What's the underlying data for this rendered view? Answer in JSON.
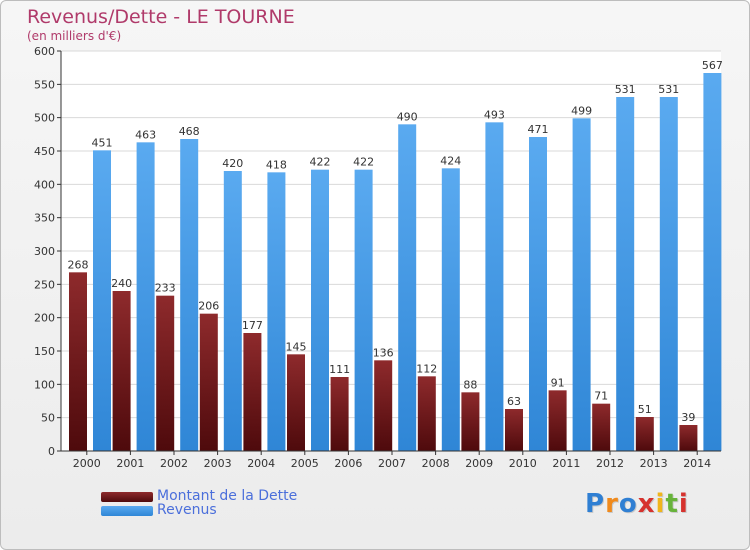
{
  "header": {
    "title": "Revenus/Dette - LE TOURNE",
    "subtitle": "(en milliers d'€)"
  },
  "legend": {
    "items": [
      {
        "label": "Montant de la Dette",
        "color": "#7a1a1c"
      },
      {
        "label": "Revenus",
        "color": "#4a9fe6"
      }
    ]
  },
  "logo": {
    "text": "Proxiti",
    "letters": [
      "P",
      "r",
      "o",
      "x",
      "i",
      "t",
      "i"
    ],
    "letter_colors": [
      "#2f7fd3",
      "#f08a1c",
      "#2f7fd3",
      "#d6322e",
      "#f0b51c",
      "#67b33a",
      "#d6322e"
    ]
  },
  "chart_data": {
    "type": "bar",
    "title": "Revenus/Dette - LE TOURNE",
    "ylabel": "(en milliers d'€)",
    "categories": [
      "2000",
      "2001",
      "2002",
      "2003",
      "2004",
      "2005",
      "2006",
      "2007",
      "2008",
      "2009",
      "2010",
      "2011",
      "2012",
      "2013",
      "2014"
    ],
    "series": [
      {
        "name": "Montant de la Dette",
        "color": "#7a1a1c",
        "values": [
          268,
          240,
          233,
          206,
          177,
          145,
          111,
          136,
          112,
          88,
          63,
          91,
          71,
          51,
          39
        ]
      },
      {
        "name": "Revenus",
        "color": "#4a9fe6",
        "values": [
          451,
          463,
          468,
          420,
          418,
          422,
          422,
          490,
          424,
          493,
          471,
          499,
          531,
          531,
          567
        ]
      }
    ],
    "ylim": [
      0,
      600
    ],
    "yticks": [
      0,
      50,
      100,
      150,
      200,
      250,
      300,
      350,
      400,
      450,
      500,
      550,
      600
    ],
    "grid": true,
    "legend_position": "bottom-left"
  }
}
